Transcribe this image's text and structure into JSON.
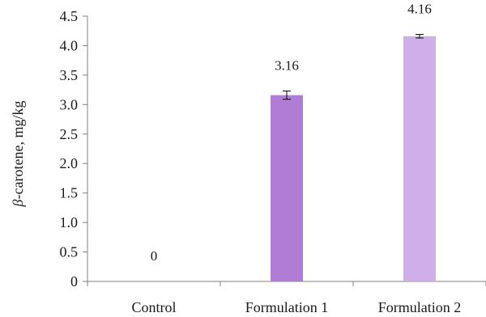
{
  "chart_data": {
    "type": "bar",
    "categories": [
      "Control",
      "Formulation 1",
      "Formulation 2"
    ],
    "values": [
      0,
      3.16,
      4.16
    ],
    "errors": [
      0,
      0.07,
      0.03
    ],
    "data_labels": [
      "0",
      "3.16",
      "4.16"
    ],
    "colors": [
      "#b07cd6",
      "#b07cd6",
      "#d0aee9"
    ],
    "ylabel_symbol": "β",
    "ylabel": "-carotene, mg/kg",
    "ylim": [
      0,
      4.5
    ],
    "ytick_labels": [
      "0",
      "0.5",
      "1.0",
      "1.5",
      "2.0",
      "2.5",
      "3.0",
      "3.5",
      "4.0",
      "4.5"
    ],
    "grid": false,
    "legend": "none"
  }
}
